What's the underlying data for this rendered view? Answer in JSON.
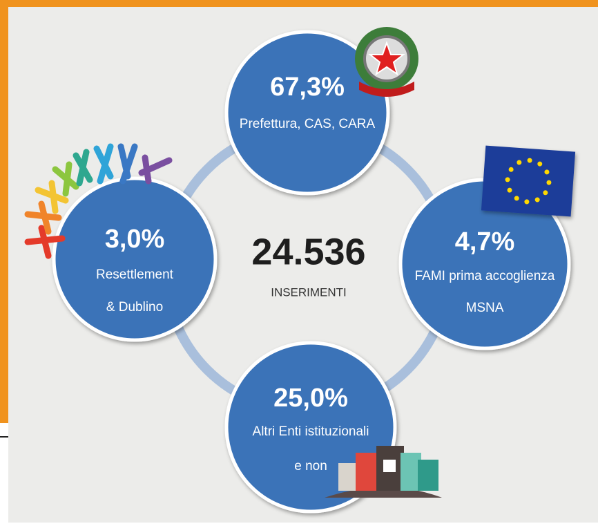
{
  "center": {
    "value": "24.536",
    "label": "INSERIMENTI"
  },
  "nodes": [
    {
      "percent": "67,3%",
      "lines": [
        "Prefettura, CAS, CARA"
      ]
    },
    {
      "percent": "3,0%",
      "lines": [
        "Resettlement",
        "& Dublino"
      ]
    },
    {
      "percent": "4,7%",
      "lines": [
        "FAMI prima accoglienza",
        "MSNA"
      ]
    },
    {
      "percent": "25,0%",
      "lines": [
        "Altri Enti istituzionali",
        "e non"
      ]
    }
  ]
}
